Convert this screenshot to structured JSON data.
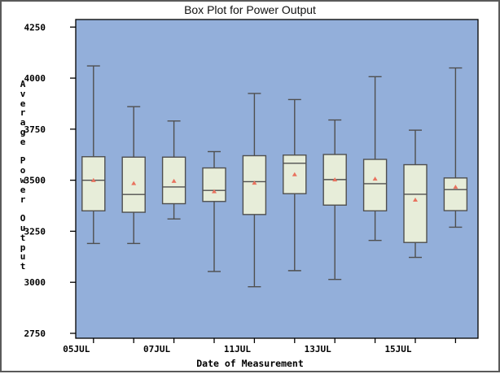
{
  "chart_data": {
    "type": "boxplot",
    "title": "Box Plot for Power Output",
    "xlabel": "Date of Measurement",
    "ylabel": "Average Power Output",
    "y_ticks": [
      2750,
      3000,
      3250,
      3500,
      3750,
      4000,
      4250
    ],
    "ylim": [
      2725,
      4285
    ],
    "grid": "off",
    "legend": "none",
    "groups": [
      {
        "x_label": "05JUL",
        "whisker_low": 3190,
        "q1": 3350,
        "median": 3500,
        "mean": 3500,
        "q3": 3615,
        "whisker_high": 4060
      },
      {
        "x_label": "",
        "whisker_low": 3190,
        "q1": 3343,
        "median": 3430,
        "mean": 3485,
        "q3": 3613,
        "whisker_high": 3860
      },
      {
        "x_label": "07JUL",
        "whisker_low": 3310,
        "q1": 3385,
        "median": 3467,
        "mean": 3496,
        "q3": 3613,
        "whisker_high": 3790
      },
      {
        "x_label": "",
        "whisker_low": 3053,
        "q1": 3396,
        "median": 3450,
        "mean": 3445,
        "q3": 3560,
        "whisker_high": 3640
      },
      {
        "x_label": "11JUL",
        "whisker_low": 2978,
        "q1": 3332,
        "median": 3493,
        "mean": 3487,
        "q3": 3620,
        "whisker_high": 3925
      },
      {
        "x_label": "",
        "whisker_low": 3057,
        "q1": 3434,
        "median": 3583,
        "mean": 3528,
        "q3": 3623,
        "whisker_high": 3895
      },
      {
        "x_label": "13JUL",
        "whisker_low": 3014,
        "q1": 3378,
        "median": 3503,
        "mean": 3503,
        "q3": 3626,
        "whisker_high": 3795
      },
      {
        "x_label": "",
        "whisker_low": 3205,
        "q1": 3350,
        "median": 3483,
        "mean": 3507,
        "q3": 3602,
        "whisker_high": 4007
      },
      {
        "x_label": "15JUL",
        "whisker_low": 3122,
        "q1": 3195,
        "median": 3431,
        "mean": 3404,
        "q3": 3576,
        "whisker_high": 3745
      },
      {
        "x_label": "",
        "whisker_low": 3270,
        "q1": 3351,
        "median": 3454,
        "mean": 3467,
        "q3": 3511,
        "whisker_high": 4050
      }
    ]
  },
  "colors": {
    "plot_background": "#93AFDA",
    "box_fill": "#E7EDD9",
    "box_line": "#4F4F4F",
    "mean_marker": "#E9725E",
    "axis": "#000000",
    "text": "#000000",
    "figure_border": "#5A5A5A",
    "figure_background": "#FFFFFF"
  }
}
